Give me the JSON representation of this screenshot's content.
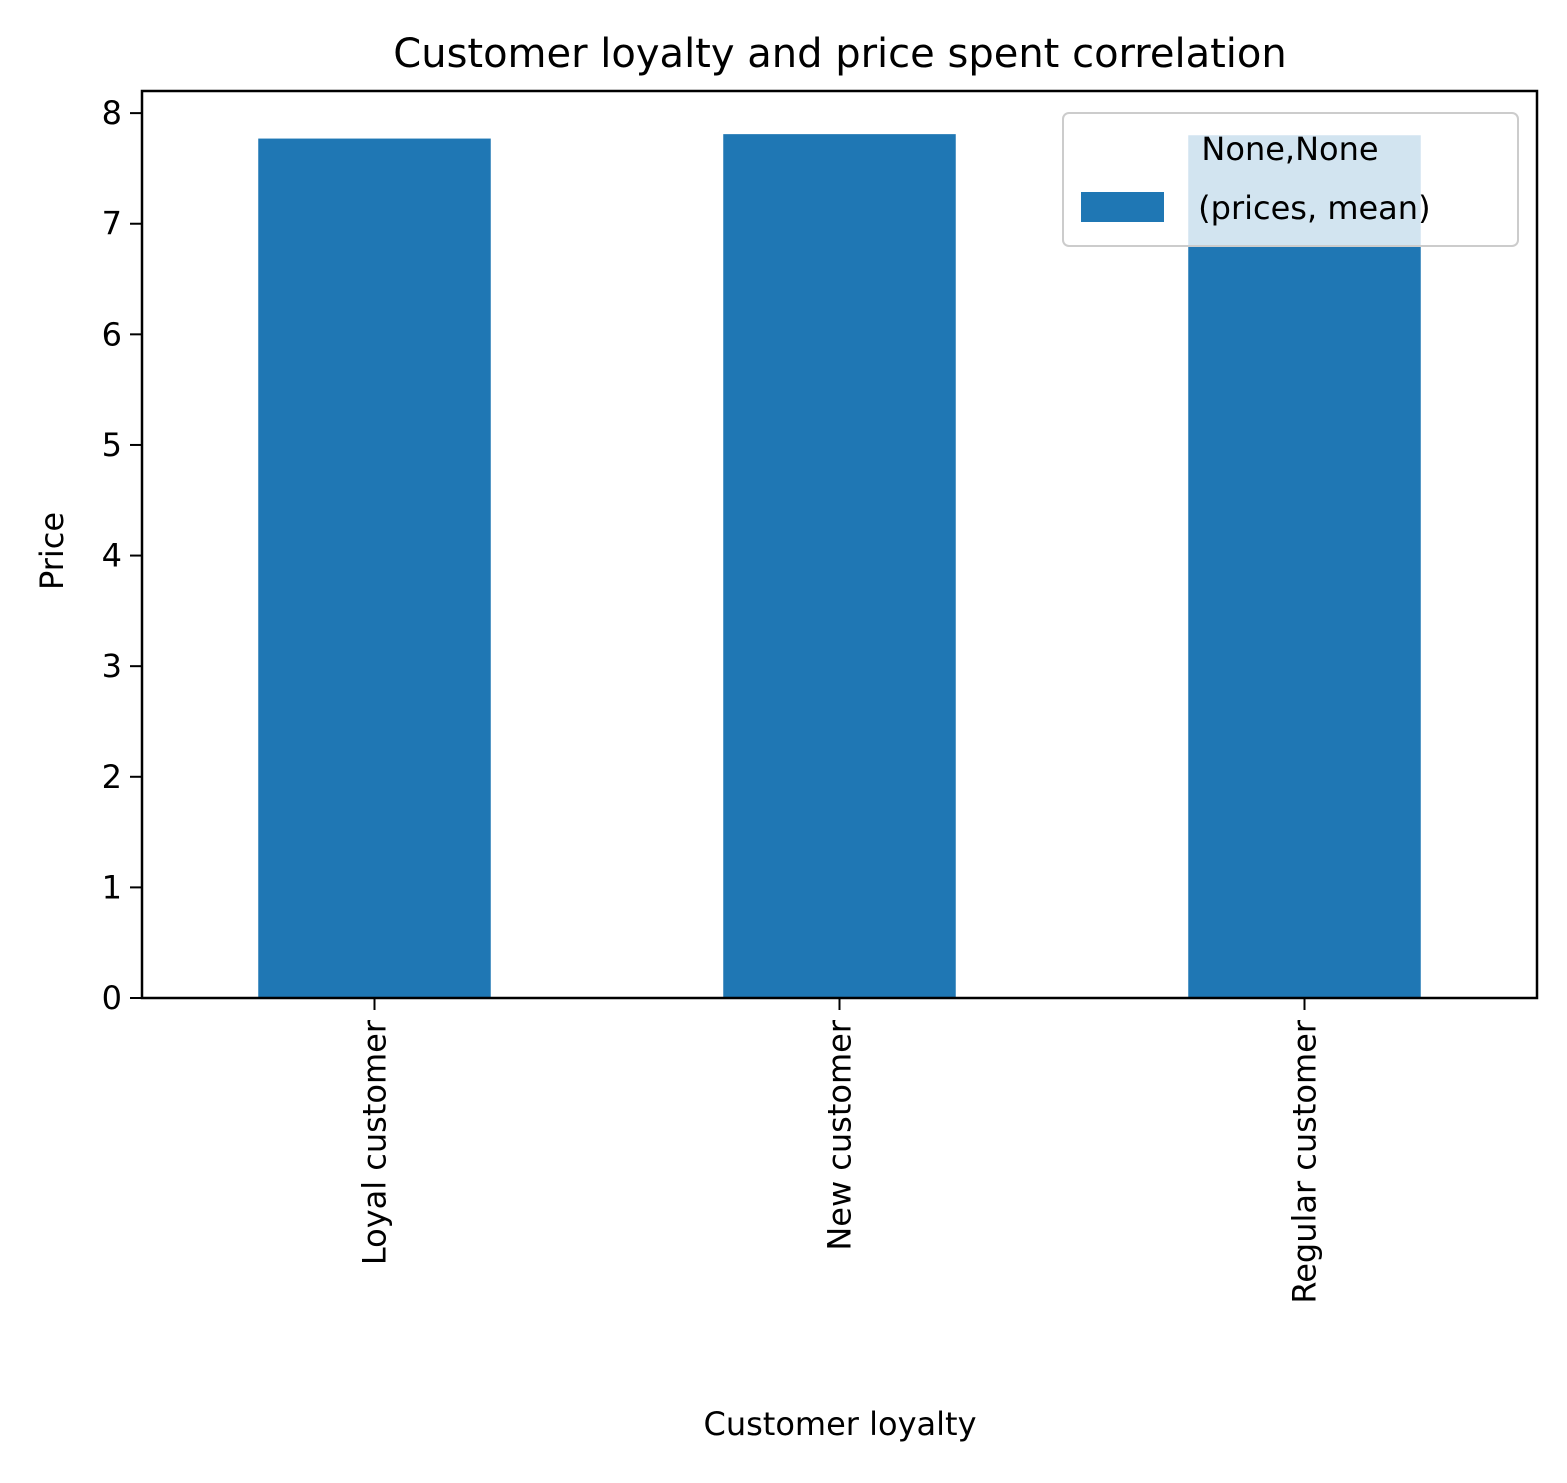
{
  "chart_data": {
    "type": "bar",
    "title": "Customer loyalty and price spent correlation",
    "xlabel": "Customer loyalty",
    "ylabel": "Price",
    "categories": [
      "Loyal customer",
      "New customer",
      "Regular customer"
    ],
    "series": [
      {
        "name": " (prices, mean)",
        "values": [
          7.77,
          7.81,
          7.8
        ]
      }
    ],
    "ylim": [
      0,
      8.2
    ],
    "yticks": [
      "0",
      "1",
      "2",
      "3",
      "4",
      "5",
      "6",
      "7",
      "8"
    ],
    "grid": false,
    "legend": {
      "title": "None,None",
      "placement": "top-right"
    },
    "colors": {
      "bar": "#1f77b4"
    }
  }
}
